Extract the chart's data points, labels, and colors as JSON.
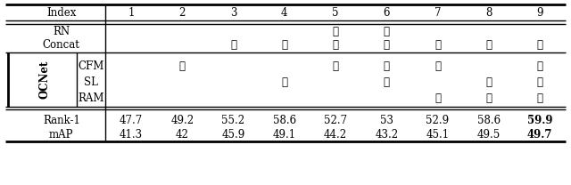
{
  "col_headers": [
    "Index",
    "1",
    "2",
    "3",
    "4",
    "5",
    "6",
    "7",
    "8",
    "9"
  ],
  "rows": {
    "RN": [
      false,
      false,
      false,
      false,
      true,
      true,
      false,
      false,
      false
    ],
    "Concat": [
      false,
      false,
      true,
      true,
      true,
      true,
      true,
      true,
      true
    ],
    "CFM": [
      false,
      true,
      false,
      false,
      true,
      true,
      true,
      false,
      true
    ],
    "SL": [
      false,
      false,
      false,
      true,
      false,
      true,
      false,
      true,
      true
    ],
    "RAM": [
      false,
      false,
      false,
      false,
      false,
      false,
      true,
      true,
      true
    ]
  },
  "rank1": [
    "47.7",
    "49.2",
    "55.2",
    "58.6",
    "52.7",
    "53",
    "52.9",
    "58.6",
    "59.9"
  ],
  "map": [
    "41.3",
    "42",
    "45.9",
    "49.1",
    "44.2",
    "43.2",
    "45.1",
    "49.5",
    "49.7"
  ],
  "bold_col": 8,
  "check": "✓",
  "row_order": [
    "RN",
    "Concat",
    "CFM",
    "SL",
    "RAM"
  ],
  "ocnet_rows": [
    "CFM",
    "SL",
    "RAM"
  ]
}
